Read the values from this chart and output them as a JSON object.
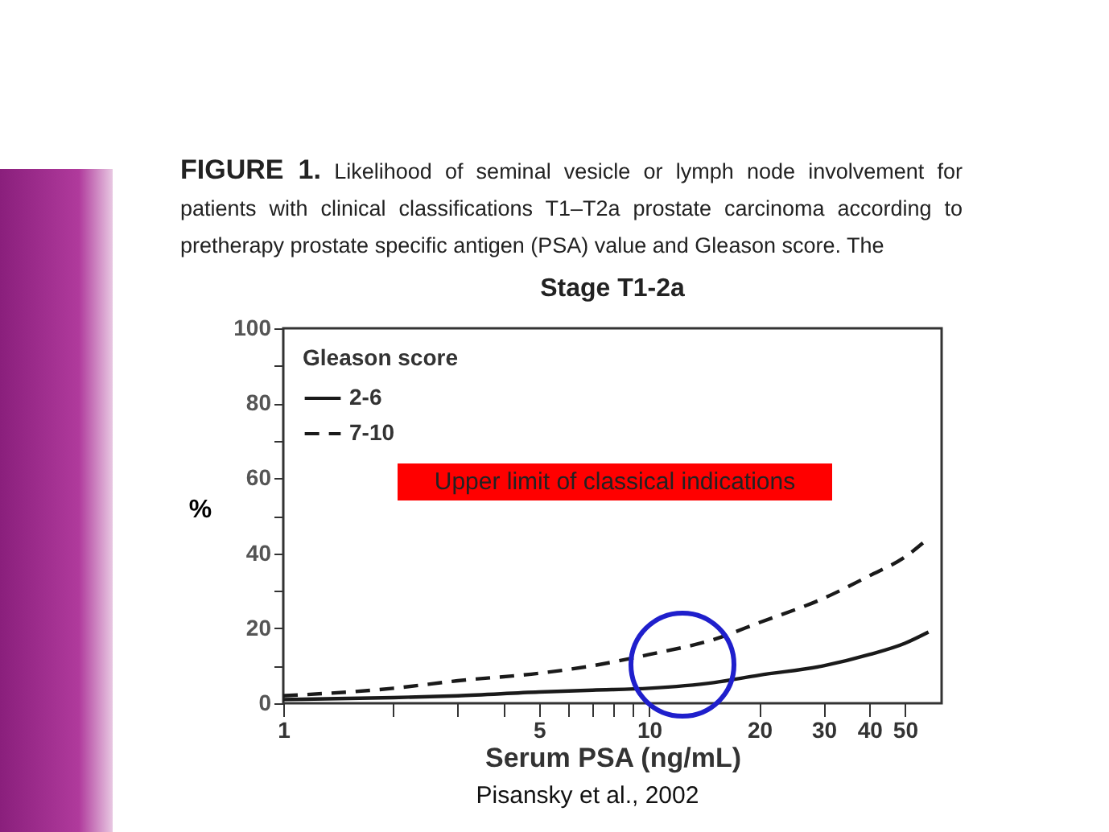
{
  "chart_data": {
    "type": "line",
    "title": "Stage T1-2a",
    "xlabel": "Serum PSA (ng/mL)",
    "ylabel": "%",
    "legend_title": "Gleason score",
    "legend": "top left",
    "log": "x",
    "grid": false,
    "x": [
      1,
      2,
      3,
      5,
      7,
      10,
      15,
      20,
      30,
      40,
      50,
      58
    ],
    "series": [
      {
        "name": "2-6",
        "color": "#1a1a1a",
        "line_style": "solid",
        "values": [
          1,
          1.5,
          2,
          3,
          3.5,
          4,
          5.5,
          7.5,
          10,
          13,
          16,
          19
        ]
      },
      {
        "name": "7-10",
        "color": "#1a1a1a",
        "line_style": "dashed",
        "values": [
          2,
          4,
          6,
          8,
          10,
          13,
          17,
          21.5,
          28,
          34,
          39,
          44
        ]
      }
    ],
    "xlim": [
      1,
      63
    ],
    "xticks": [
      1,
      {
        "value": 2,
        "label": null
      },
      {
        "value": 3,
        "label": null
      },
      {
        "value": 4,
        "label": null
      },
      5,
      {
        "value": 6,
        "label": null
      },
      {
        "value": 7,
        "label": null
      },
      {
        "value": 8,
        "label": null
      },
      {
        "value": 9,
        "label": null
      },
      10,
      20,
      30,
      40,
      50
    ],
    "ylim": [
      0,
      100
    ],
    "yticks": [
      0,
      {
        "value": 10,
        "label": null
      },
      20,
      {
        "value": 30,
        "label": null
      },
      40,
      {
        "value": 50,
        "label": null
      },
      60,
      {
        "value": 70,
        "label": null
      },
      80,
      {
        "value": 90,
        "label": null
      },
      100
    ],
    "annotations": [
      "FIGURE 1. Likelihood of seminal vesicle or lymph node involvement for patients with clinical classifications T1–T2a prostate carcinoma according to pretherapy prostate specific antigen (PSA) value and Gleason score. The",
      "Upper limit of classical indications",
      "Pisansky et al., 2002"
    ]
  }
}
